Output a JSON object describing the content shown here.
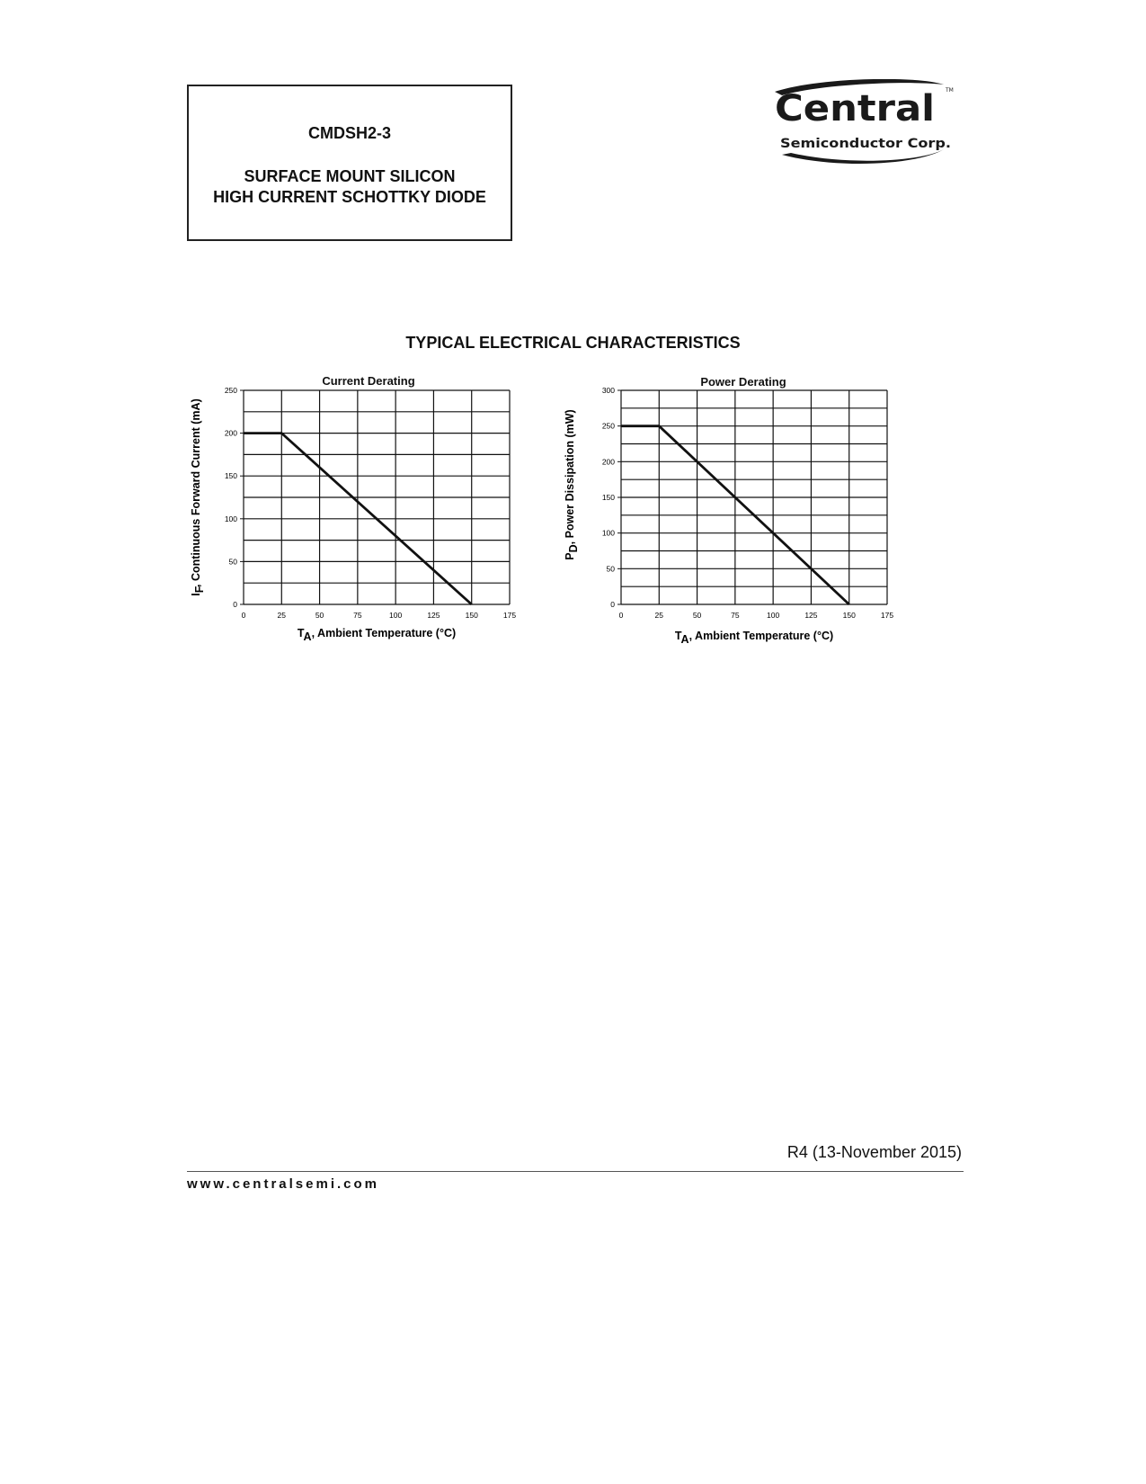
{
  "header": {
    "part_number": "CMDSH2-3",
    "description_line1": "SURFACE MOUNT SILICON",
    "description_line2": "HIGH CURRENT SCHOTTKY DIODE"
  },
  "logo": {
    "name": "Central",
    "sub": "Semiconductor Corp.",
    "tm": "TM"
  },
  "section_title": "TYPICAL ELECTRICAL CHARACTERISTICS",
  "chart_data": [
    {
      "type": "line",
      "title": "Current Derating",
      "xlabel": "TA, Ambient Temperature (°C)",
      "xlabel_main": "T",
      "xlabel_sub": "A",
      "xlabel_rest": ", Ambient Temperature (°C)",
      "ylabel_main": "I",
      "ylabel_sub": "F",
      "ylabel_rest": ", Continuous Forward Current (mA)",
      "xlim": [
        0,
        175
      ],
      "ylim": [
        0,
        250
      ],
      "xticks": [
        0,
        25,
        50,
        75,
        100,
        125,
        150,
        175
      ],
      "yticks": [
        0,
        50,
        100,
        150,
        200,
        250
      ],
      "grid_x_step": 25,
      "grid_y_step": 25,
      "grid": true,
      "series": [
        {
          "x": [
            0,
            25,
            150
          ],
          "y": [
            200,
            200,
            0
          ]
        }
      ]
    },
    {
      "type": "line",
      "title": "Power Derating",
      "xlabel": "TA, Ambient Temperature (°C)",
      "xlabel_main": "T",
      "xlabel_sub": "A",
      "xlabel_rest": ", Ambient Temperature (°C)",
      "ylabel_main": "P",
      "ylabel_sub": "D",
      "ylabel_rest": ", Power Dissipation (mW)",
      "xlim": [
        0,
        175
      ],
      "ylim": [
        0,
        300
      ],
      "xticks": [
        0,
        25,
        50,
        75,
        100,
        125,
        150,
        175
      ],
      "yticks": [
        0,
        50,
        100,
        150,
        200,
        250,
        300
      ],
      "grid_x_step": 25,
      "grid_y_step": 25,
      "grid": true,
      "series": [
        {
          "x": [
            0,
            25,
            150
          ],
          "y": [
            250,
            250,
            0
          ]
        }
      ]
    }
  ],
  "footer": {
    "revision": "R4 (13-November 2015)",
    "website": "www.centralsemi.com"
  }
}
